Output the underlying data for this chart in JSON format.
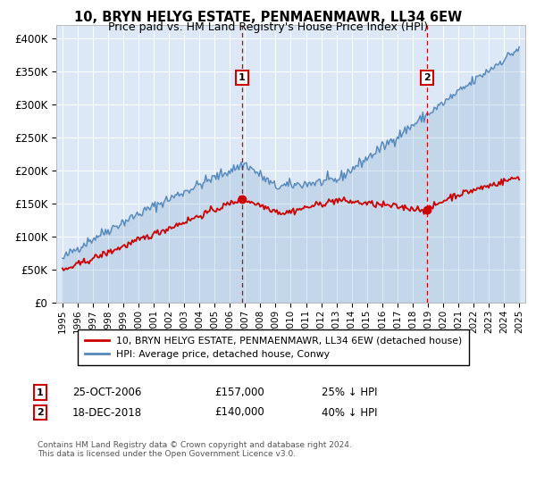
{
  "title": "10, BRYN HELYG ESTATE, PENMAENMAWR, LL34 6EW",
  "subtitle": "Price paid vs. HM Land Registry's House Price Index (HPI)",
  "legend_line1": "10, BRYN HELYG ESTATE, PENMAENMAWR, LL34 6EW (detached house)",
  "legend_line2": "HPI: Average price, detached house, Conwy",
  "event1_date": "25-OCT-2006",
  "event1_price": "£157,000",
  "event1_hpi": "25% ↓ HPI",
  "event2_date": "18-DEC-2018",
  "event2_price": "£140,000",
  "event2_hpi": "40% ↓ HPI",
  "footnote": "Contains HM Land Registry data © Crown copyright and database right 2024.\nThis data is licensed under the Open Government Licence v3.0.",
  "ylim": [
    0,
    420000
  ],
  "yticks": [
    0,
    50000,
    100000,
    150000,
    200000,
    250000,
    300000,
    350000,
    400000
  ],
  "ytick_labels": [
    "£0",
    "£50K",
    "£100K",
    "£150K",
    "£200K",
    "£250K",
    "£300K",
    "£350K",
    "£400K"
  ],
  "background_color": "#dce8f5",
  "red_color": "#cc0000",
  "blue_color": "#5588bb",
  "event_line_color": "#cc0000",
  "event1_year": 2006.8,
  "event2_year": 2018.95,
  "event1_red_y": 157000,
  "event2_red_y": 140000,
  "marker_y": 340000,
  "xlim_left": 1994.6,
  "xlim_right": 2025.4
}
